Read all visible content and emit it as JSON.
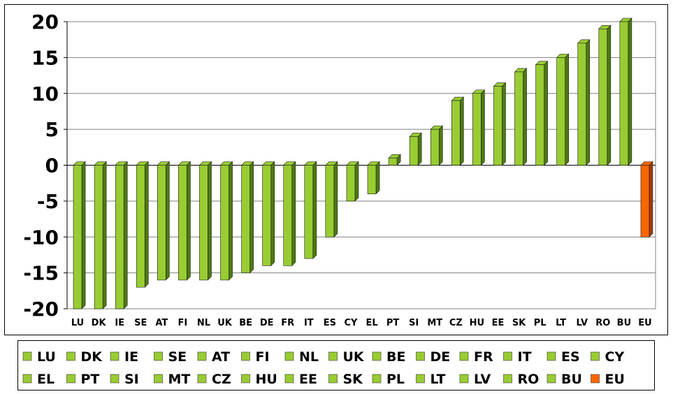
{
  "chart_data": {
    "type": "bar",
    "title": "",
    "xlabel": "",
    "ylabel": "",
    "ylim": [
      -20,
      20
    ],
    "yticks": [
      20,
      15,
      10,
      5,
      0,
      -5,
      -10,
      -15,
      -20
    ],
    "categories": [
      "LU",
      "DK",
      "IE",
      "SE",
      "AT",
      "FI",
      "NL",
      "UK",
      "BE",
      "DE",
      "FR",
      "IT",
      "ES",
      "CY",
      "EL",
      "PT",
      "SI",
      "MT",
      "CZ",
      "HU",
      "EE",
      "SK",
      "PL",
      "LT",
      "LV",
      "RO",
      "BU",
      "EU"
    ],
    "values": [
      -20,
      -20,
      -20,
      -17,
      -16,
      -16,
      -16,
      -16,
      -15,
      -14,
      -14,
      -13,
      -10,
      -5,
      -4,
      1,
      4,
      5,
      9,
      10,
      11,
      13,
      14,
      15,
      17,
      19,
      20,
      -10
    ],
    "colors": {
      "default_bar": "#99cc33",
      "default_side": "#4d7a10",
      "highlight_bar": "#ff6600",
      "highlight_side": "#a33a00",
      "highlight_category": "EU"
    },
    "grid": true,
    "legend_position": "bottom",
    "legend": [
      "LU",
      "DK",
      "IE",
      "SE",
      "AT",
      "FI",
      "NL",
      "UK",
      "BE",
      "DE",
      "FR",
      "IT",
      "ES",
      "CY",
      "EL",
      "PT",
      "SI",
      "MT",
      "CZ",
      "HU",
      "EE",
      "SK",
      "PL",
      "LT",
      "LV",
      "RO",
      "BU",
      "EU"
    ]
  }
}
